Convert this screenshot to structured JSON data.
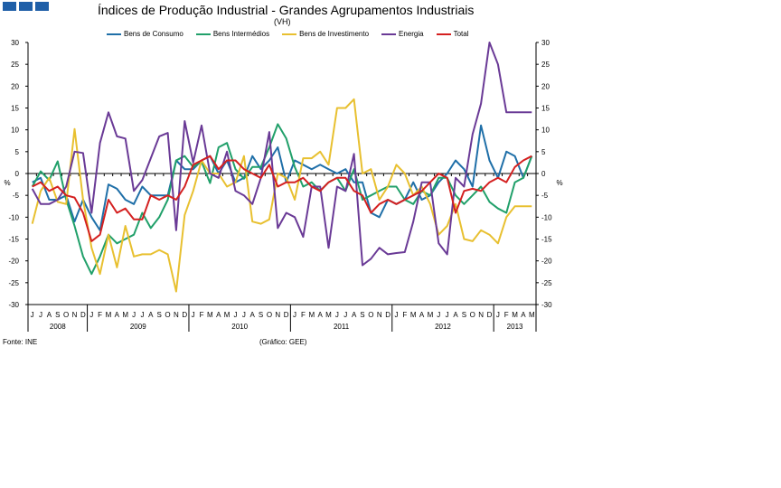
{
  "header": {
    "title": "Índices de Produção Industrial - Grandes Agrupamentos Industriais",
    "subtitle": "(VH)"
  },
  "logo_colors": [
    "#1f5fa8",
    "#1f5fa8",
    "#1f5fa8"
  ],
  "footer": {
    "source": "Fonte: INE",
    "credit": "(Gráfico: GEE)"
  },
  "chart_data": {
    "type": "line",
    "title": "Índices de Produção Industrial - Grandes Agrupamentos Industriais",
    "subtitle": "(VH)",
    "ylabel_left": "%",
    "ylabel_right": "%",
    "ylim": [
      -30,
      30
    ],
    "yticks": [
      -30,
      -25,
      -20,
      -15,
      -10,
      -5,
      0,
      5,
      10,
      15,
      20,
      25,
      30
    ],
    "legend_position": "top",
    "grid": false,
    "months": [
      "J",
      "J",
      "A",
      "S",
      "O",
      "N",
      "D",
      "J",
      "F",
      "M",
      "A",
      "M",
      "J",
      "J",
      "A",
      "S",
      "O",
      "N",
      "D",
      "J",
      "F",
      "M",
      "A",
      "M",
      "J",
      "J",
      "A",
      "S",
      "O",
      "N",
      "D",
      "J",
      "F",
      "M",
      "A",
      "M",
      "J",
      "J",
      "A",
      "S",
      "O",
      "N",
      "D",
      "J",
      "F",
      "M",
      "A",
      "M",
      "J",
      "J",
      "A",
      "S",
      "O",
      "N",
      "D",
      "J",
      "F",
      "M",
      "A",
      "M"
    ],
    "years": [
      {
        "label": "2008",
        "start": 0,
        "count": 7
      },
      {
        "label": "2009",
        "start": 7,
        "count": 12
      },
      {
        "label": "2010",
        "start": 19,
        "count": 12
      },
      {
        "label": "2011",
        "start": 31,
        "count": 12
      },
      {
        "label": "2012",
        "start": 43,
        "count": 12
      },
      {
        "label": "2013",
        "start": 55,
        "count": 5
      }
    ],
    "series": [
      {
        "name": "Bens de Consumo",
        "color": "#1f6fa8",
        "values": [
          -2,
          -1,
          -6,
          -6,
          -5,
          -11,
          -6,
          -10,
          -13,
          -2.5,
          -3.5,
          -6,
          -7,
          -3,
          -5,
          -5,
          -5,
          3,
          1,
          1,
          3,
          4,
          0,
          3,
          -2,
          -1,
          4,
          1,
          3,
          6,
          -2,
          3,
          2,
          1,
          2,
          1,
          0,
          1,
          -2,
          -2,
          -9,
          -10,
          -6,
          -7,
          -6,
          -2,
          -6,
          -5,
          -2,
          0,
          3,
          1,
          -3,
          11,
          3,
          -1,
          5,
          4,
          -1,
          4
        ]
      },
      {
        "name": "Bens Intermédios",
        "color": "#21a06a",
        "values": [
          -3,
          0.5,
          -1.5,
          2.8,
          -6,
          -12,
          -19,
          -23,
          -19,
          -14,
          -16,
          -15,
          -14,
          -9,
          -12.5,
          -10,
          -6,
          3,
          4,
          1.5,
          2.7,
          -2.2,
          6,
          7,
          1,
          -1.2,
          1.5,
          1.5,
          6,
          11.3,
          8,
          1.5,
          -3,
          -2,
          -4,
          -2,
          -1,
          -4,
          1,
          -6,
          -5,
          -4,
          -3,
          -3,
          -6,
          -7,
          -4,
          -5,
          -1,
          -1,
          -5,
          -7,
          -5,
          -3,
          -6.5,
          -8,
          -9,
          -2,
          -1,
          4
        ]
      },
      {
        "name": "Bens de Investimento",
        "color": "#e8c030",
        "values": [
          -11.5,
          -4,
          -1,
          -6.5,
          -7,
          10.2,
          -6,
          -17,
          -23,
          -14,
          -21.5,
          -12,
          -19,
          -18.5,
          -18.5,
          -17.5,
          -18.5,
          -27,
          -9.5,
          -4,
          3,
          0,
          0,
          -3,
          -2,
          4,
          -11,
          -11.5,
          -10.5,
          0,
          -1,
          -6,
          3.5,
          3.5,
          5,
          2,
          15,
          15,
          17,
          0,
          1,
          -6,
          -3,
          2,
          0,
          -5,
          -3,
          -7,
          -14,
          -12,
          -7,
          -15,
          -15.5,
          -13,
          -14,
          -16,
          -10,
          -7.5,
          -7.5,
          -7.5
        ]
      },
      {
        "name": "Energia",
        "color": "#6a3a96",
        "values": [
          -3.5,
          -7,
          -7,
          -6,
          -3,
          5,
          4.7,
          -9,
          7,
          14,
          8.5,
          8,
          -4,
          -1.5,
          3.5,
          8.5,
          9.3,
          -13,
          12,
          2.5,
          11,
          0,
          -1,
          5,
          -4,
          -5,
          -7,
          -1,
          9.5,
          -12.5,
          -9,
          -10,
          -14.5,
          -3,
          -3,
          -17,
          -3,
          -4,
          4.5,
          -21,
          -19.5,
          -17,
          -18.5,
          -18.2,
          -18,
          -11,
          -2,
          -2,
          -16,
          -18.5,
          -1,
          -3,
          9,
          16,
          30,
          25,
          14,
          14,
          14,
          14
        ]
      },
      {
        "name": "Total",
        "color": "#d42020",
        "values": [
          -3,
          -2,
          -4,
          -3,
          -5,
          -5.5,
          -9,
          -15.5,
          -14,
          -6,
          -9,
          -8,
          -10.5,
          -10.5,
          -5,
          -6,
          -5,
          -6,
          -3,
          2,
          3,
          4,
          1,
          3,
          3,
          1,
          0,
          -1,
          2,
          -3,
          -2,
          -2,
          -1,
          -3,
          -4,
          -2,
          -1,
          -1,
          -4,
          -5,
          -9,
          -7,
          -6,
          -7,
          -6,
          -5,
          -4,
          -2,
          0,
          -1,
          -9,
          -4,
          -3.5,
          -4,
          -2,
          -1,
          -2,
          1.5,
          3,
          4
        ]
      }
    ]
  }
}
